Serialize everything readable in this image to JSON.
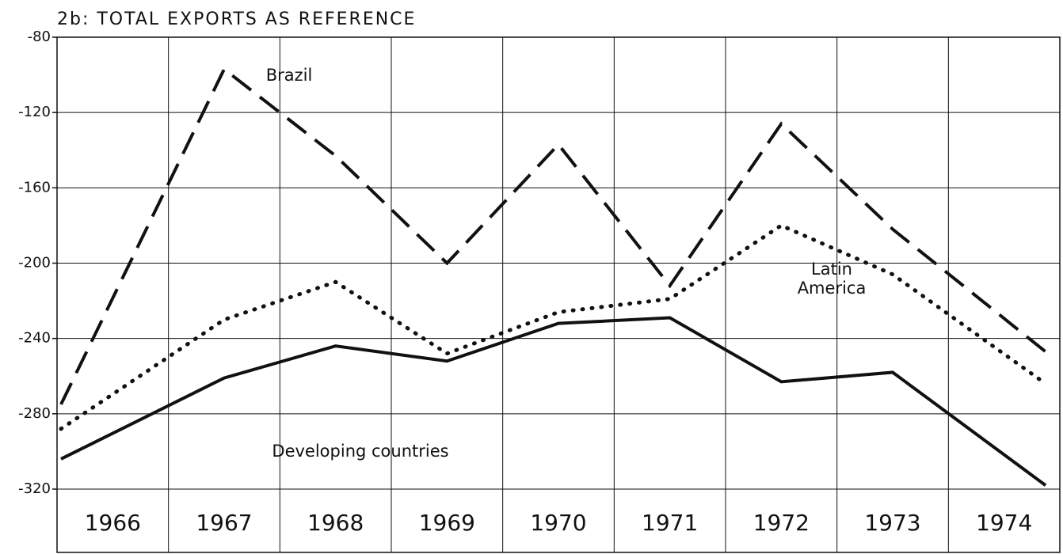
{
  "chart_data": {
    "type": "line",
    "title": "2b: TOTAL EXPORTS AS REFERENCE",
    "categories": [
      "1966",
      "1967",
      "1968",
      "1969",
      "1970",
      "1971",
      "1972",
      "1973",
      "1974"
    ],
    "series": [
      {
        "name": "Brazil",
        "color": "#111111",
        "style": "dashed",
        "values": [
          -275,
          -97,
          -143,
          -200,
          -137,
          -212,
          -126,
          -182,
          -247
        ]
      },
      {
        "name": "Latin America",
        "color": "#111111",
        "style": "dotted",
        "values": [
          -288,
          -230,
          -210,
          -248,
          -226,
          -219,
          -180,
          -206,
          -264
        ]
      },
      {
        "name": "Developing countries",
        "color": "#111111",
        "style": "solid",
        "values": [
          -304,
          -261,
          -244,
          -252,
          -232,
          -229,
          -263,
          -258,
          -318
        ]
      }
    ],
    "ylim": [
      -320,
      -80
    ],
    "yticks": [
      -320,
      -280,
      -240,
      -200,
      -160,
      -120,
      -80
    ],
    "grid": true
  }
}
